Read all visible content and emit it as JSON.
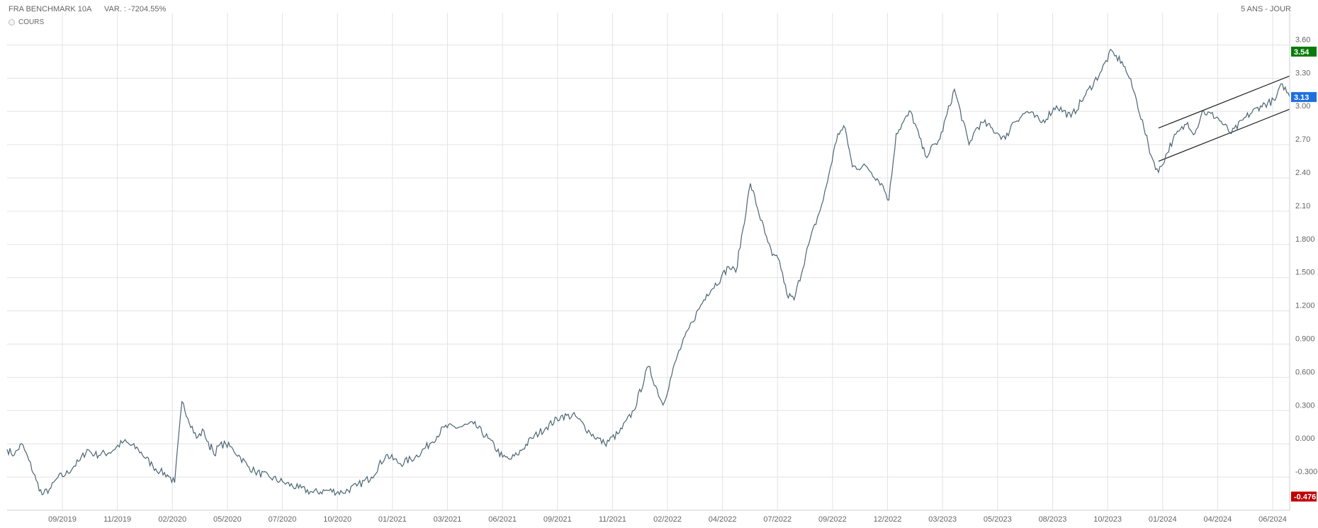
{
  "header": {
    "instrument": "FRA BENCHMARK 10A",
    "variation": "VAR. : -7204.55%",
    "period": "5 ANS - JOUR"
  },
  "legend": {
    "label": "COURS"
  },
  "colors": {
    "line": "#4a6572",
    "grid": "#e3e3e3",
    "high": "#0a7a0a",
    "current": "#1e6fe0",
    "low": "#c00000"
  },
  "badges": {
    "high": "3.54",
    "current": "3.13",
    "low": "-0.476"
  },
  "chart_data": {
    "type": "line",
    "title": "",
    "xlabel": "",
    "ylabel": "",
    "ylim": [
      -0.6,
      3.75
    ],
    "y_ticks": [
      -0.3,
      0,
      0.3,
      0.6,
      0.9,
      1.2,
      1.5,
      1.8,
      2.1,
      2.4,
      2.7,
      3.0,
      3.3,
      3.6
    ],
    "y_tick_labels": [
      "-0.300",
      "0.000",
      "0.300",
      "0.600",
      "0.900",
      "1.200",
      "1.500",
      "1.800",
      "2.10",
      "2.40",
      "2.70",
      "3.00",
      "3.30",
      "3.60"
    ],
    "x_tick_labels": [
      "09/2019",
      "11/2019",
      "02/2020",
      "05/2020",
      "07/2020",
      "10/2020",
      "01/2021",
      "03/2021",
      "06/2021",
      "09/2021",
      "11/2021",
      "02/2022",
      "04/2022",
      "07/2022",
      "09/2022",
      "12/2022",
      "03/2023",
      "05/2023",
      "08/2023",
      "10/2023",
      "01/2024",
      "04/2024",
      "06/2024"
    ],
    "grid": true,
    "series": [
      {
        "name": "",
        "x": [
          0,
          0.5,
          1,
          1.5,
          2,
          2.4,
          3,
          3.5,
          4,
          4.6,
          5,
          5.5,
          6,
          7,
          8,
          9,
          10,
          10.5,
          11,
          11.5,
          12,
          13,
          13.5,
          13.9,
          14,
          14.2,
          14.5,
          15,
          15.5,
          16,
          16.5,
          17,
          18,
          19,
          20,
          21,
          22,
          23,
          24,
          25,
          26,
          27,
          28,
          29,
          30,
          31,
          32,
          33,
          34,
          34.5,
          35,
          36,
          37,
          38,
          39,
          40,
          41,
          42,
          43,
          44,
          45,
          46,
          47,
          48,
          49,
          49.5,
          50,
          51,
          52,
          52.5,
          53,
          53.5,
          54,
          55,
          56,
          56.5,
          57,
          57.5,
          58,
          59,
          60,
          60.5,
          61,
          62,
          63,
          64,
          65,
          66,
          66.5,
          67,
          68,
          68.5,
          69,
          70,
          71
        ],
        "values": [
          -0.05,
          -0.1,
          0.0,
          -0.15,
          -0.33,
          -0.46,
          -0.4,
          -0.3,
          -0.28,
          -0.2,
          -0.15,
          -0.05,
          -0.1,
          -0.08,
          0.02,
          -0.05,
          -0.2,
          -0.25,
          -0.28,
          -0.35,
          0.38,
          0.05,
          0.12,
          -0.05,
          0.0,
          -0.1,
          -0.02,
          0.0,
          -0.05,
          -0.12,
          -0.2,
          -0.25,
          -0.3,
          -0.35,
          -0.4,
          -0.44,
          -0.42,
          -0.44,
          -0.38,
          -0.3,
          -0.1,
          -0.18,
          -0.12,
          0.0,
          0.15,
          0.15,
          0.18,
          0.05,
          -0.12,
          -0.14,
          -0.1,
          0.05,
          0.15,
          0.25,
          0.25,
          0.1,
          0.0,
          0.1,
          0.3,
          0.7,
          0.35,
          0.8,
          1.1,
          1.35,
          1.5,
          1.6,
          1.55,
          2.35,
          1.9,
          1.7,
          1.65,
          1.35,
          1.3,
          1.8,
          2.2,
          2.5,
          2.8,
          2.85,
          2.5,
          2.5,
          2.35,
          2.2,
          2.8,
          3.0,
          2.6,
          2.75,
          3.2,
          2.7,
          2.85,
          2.9,
          2.8,
          2.75,
          2.9,
          3.0,
          2.9
        ],
        "x_continued": [
          72,
          73,
          74,
          75,
          75.8,
          76,
          76.5,
          77,
          77.5,
          78,
          78.5,
          79,
          80,
          81,
          81.5,
          82,
          83,
          84,
          85,
          86,
          87,
          87.5,
          88
        ],
        "values_continued": [
          3.05,
          2.95,
          3.15,
          3.35,
          3.55,
          3.5,
          3.45,
          3.3,
          3.1,
          2.85,
          2.6,
          2.45,
          2.75,
          2.9,
          2.8,
          3.0,
          2.95,
          2.8,
          2.95,
          3.05,
          3.1,
          3.25,
          3.13
        ]
      }
    ]
  }
}
